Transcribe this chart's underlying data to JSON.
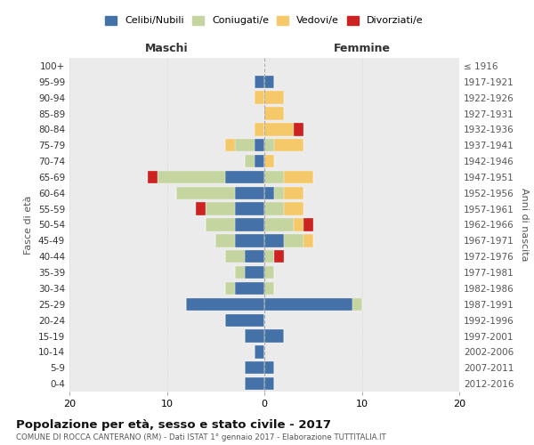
{
  "age_groups": [
    "0-4",
    "5-9",
    "10-14",
    "15-19",
    "20-24",
    "25-29",
    "30-34",
    "35-39",
    "40-44",
    "45-49",
    "50-54",
    "55-59",
    "60-64",
    "65-69",
    "70-74",
    "75-79",
    "80-84",
    "85-89",
    "90-94",
    "95-99",
    "100+"
  ],
  "birth_years": [
    "2012-2016",
    "2007-2011",
    "2002-2006",
    "1997-2001",
    "1992-1996",
    "1987-1991",
    "1982-1986",
    "1977-1981",
    "1972-1976",
    "1967-1971",
    "1962-1966",
    "1957-1961",
    "1952-1956",
    "1947-1951",
    "1942-1946",
    "1937-1941",
    "1932-1936",
    "1927-1931",
    "1922-1926",
    "1917-1921",
    "≤ 1916"
  ],
  "males": {
    "celibi": [
      2,
      2,
      1,
      2,
      4,
      8,
      3,
      2,
      2,
      3,
      3,
      3,
      3,
      4,
      1,
      1,
      0,
      0,
      0,
      1,
      0
    ],
    "coniugati": [
      0,
      0,
      0,
      0,
      0,
      0,
      1,
      1,
      2,
      2,
      3,
      3,
      6,
      7,
      1,
      2,
      0,
      0,
      0,
      0,
      0
    ],
    "vedovi": [
      0,
      0,
      0,
      0,
      0,
      0,
      0,
      0,
      0,
      0,
      0,
      0,
      0,
      0,
      0,
      1,
      1,
      0,
      1,
      0,
      0
    ],
    "divorziati": [
      0,
      0,
      0,
      0,
      0,
      0,
      0,
      0,
      0,
      0,
      0,
      1,
      0,
      1,
      0,
      0,
      0,
      0,
      0,
      0,
      0
    ]
  },
  "females": {
    "nubili": [
      1,
      1,
      0,
      2,
      0,
      9,
      0,
      0,
      0,
      2,
      0,
      0,
      1,
      0,
      0,
      0,
      0,
      0,
      0,
      1,
      0
    ],
    "coniugate": [
      0,
      0,
      0,
      0,
      0,
      1,
      1,
      1,
      1,
      2,
      3,
      2,
      1,
      2,
      0,
      1,
      0,
      0,
      0,
      0,
      0
    ],
    "vedove": [
      0,
      0,
      0,
      0,
      0,
      0,
      0,
      0,
      0,
      1,
      1,
      2,
      2,
      3,
      1,
      3,
      3,
      2,
      2,
      0,
      0
    ],
    "divorziate": [
      0,
      0,
      0,
      0,
      0,
      0,
      0,
      0,
      1,
      0,
      1,
      0,
      0,
      0,
      0,
      0,
      1,
      0,
      0,
      0,
      0
    ]
  },
  "colors": {
    "celibi_nubili": "#4472a8",
    "coniugati": "#c5d5a0",
    "vedovi": "#f5c96a",
    "divorziati": "#cc2222"
  },
  "xlim": 20,
  "title": "Popolazione per età, sesso e stato civile - 2017",
  "subtitle": "COMUNE DI ROCCA CANTERANO (RM) - Dati ISTAT 1° gennaio 2017 - Elaborazione TUTTITALIA.IT",
  "xlabel_left": "Maschi",
  "xlabel_right": "Femmine",
  "ylabel": "Fasce di età",
  "ylabel_right": "Anni di nascita",
  "bg_color": "#ebebeb"
}
